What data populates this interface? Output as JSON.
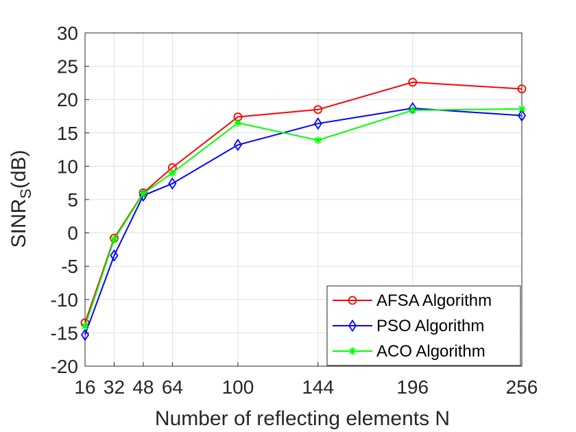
{
  "chart_data": {
    "type": "line",
    "title": "",
    "xlabel": "Number of reflecting elements N",
    "ylabel_main": "SINR",
    "ylabel_sub": "S",
    "ylabel_tail": "(dB)",
    "x": [
      16,
      32,
      48,
      64,
      100,
      144,
      196,
      256
    ],
    "xlim": [
      16,
      256
    ],
    "ylim": [
      -20,
      30
    ],
    "yticks": [
      -20,
      -15,
      -10,
      -5,
      0,
      5,
      10,
      15,
      20,
      25,
      30
    ],
    "grid": true,
    "legend_position": "bottom-right",
    "series": [
      {
        "name": "AFSA Algorithm",
        "color": "#ff0000",
        "marker": "circle",
        "values": [
          -13.5,
          -0.8,
          6.0,
          9.8,
          17.4,
          18.5,
          22.6,
          21.6
        ]
      },
      {
        "name": "PSO Algorithm",
        "color": "#0000ff",
        "marker": "diamond",
        "values": [
          -15.3,
          -3.4,
          5.6,
          7.4,
          13.2,
          16.4,
          18.7,
          17.6
        ]
      },
      {
        "name": "ACO Algorithm",
        "color": "#00ff00",
        "marker": "star",
        "values": [
          -14.0,
          -1.0,
          5.9,
          9.0,
          16.5,
          13.9,
          18.4,
          18.6
        ]
      }
    ]
  }
}
